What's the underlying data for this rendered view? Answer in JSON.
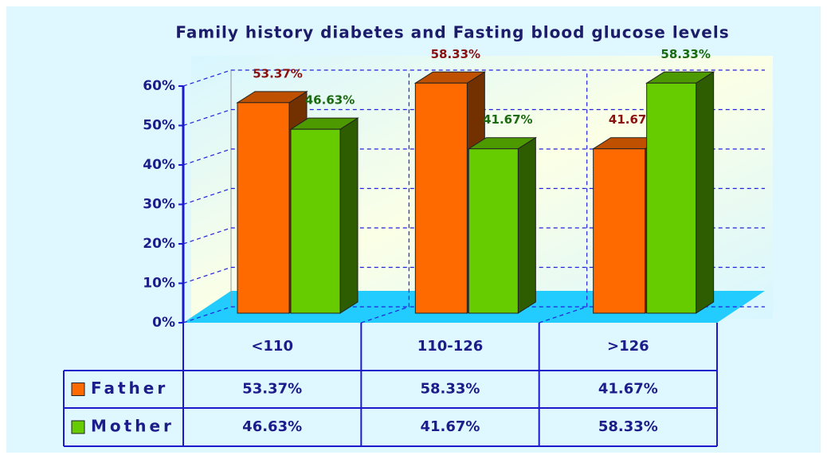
{
  "chart_data": {
    "type": "bar",
    "title": "Family history diabetes and Fasting blood glucose levels",
    "categories": [
      "<110",
      "110-126",
      ">126"
    ],
    "series": [
      {
        "name": "Father",
        "color": "#ff6a00",
        "label_color": "#8b1010",
        "values": [
          53.37,
          58.33,
          41.67
        ],
        "value_labels": [
          "53.37%",
          "58.33%",
          "41.67%"
        ]
      },
      {
        "name": "Mother",
        "color": "#66cc00",
        "label_color": "#1a6a10",
        "values": [
          46.63,
          41.67,
          58.33
        ],
        "value_labels": [
          "46.63%",
          "41.67%",
          "58.33%"
        ]
      }
    ],
    "ylim": [
      0,
      60
    ],
    "yticks": [
      {
        "value": 0,
        "label": "0%"
      },
      {
        "value": 10,
        "label": "10%"
      },
      {
        "value": 20,
        "label": "20%"
      },
      {
        "value": 30,
        "label": "30%"
      },
      {
        "value": 40,
        "label": "40%"
      },
      {
        "value": 50,
        "label": "50%"
      },
      {
        "value": 60,
        "label": "60%"
      }
    ],
    "grid": true
  }
}
